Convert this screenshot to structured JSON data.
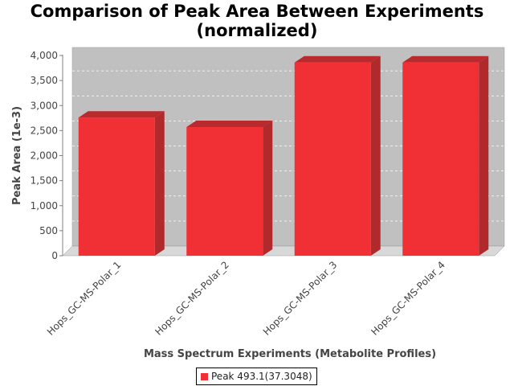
{
  "chart_data": {
    "type": "bar",
    "title": "Comparison of Peak Area Between Experiments",
    "subtitle": "(normalized)",
    "xlabel": "Mass Spectrum Experiments (Metabolite Profiles)",
    "ylabel": "Peak Area (1e-3)",
    "categories": [
      "Hops_GC-MS-Polar_1",
      "Hops_GC-MS-Polar_2",
      "Hops_GC-MS-Polar_3",
      "Hops_GC-MS-Polar_4"
    ],
    "series": [
      {
        "name": "Peak 493.1(37.3048)",
        "values": [
          2760,
          2570,
          3860,
          3860
        ]
      }
    ],
    "ylim": [
      0,
      4000
    ],
    "yticks": [
      0,
      500,
      1000,
      1500,
      2000,
      2500,
      3000,
      3500,
      4000
    ],
    "ytick_labels": [
      "0",
      "500",
      "1,000",
      "1,500",
      "2,000",
      "2,500",
      "3,000",
      "3,500",
      "4,000"
    ],
    "grid": true,
    "legend_position": "bottom",
    "colors": {
      "bar_front": "#f03035",
      "bar_top": "#b92a2e",
      "bar_side": "#b02a2c",
      "plot_bg": "#c0c0c0",
      "floor": "#d8d8d8"
    }
  }
}
